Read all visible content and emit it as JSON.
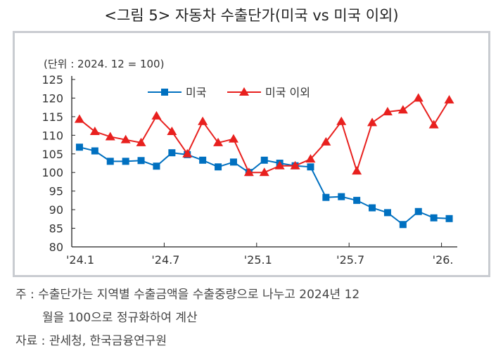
{
  "title": "<그림 5> 자동차 수출단가(미국 vs 미국 이외)",
  "notes": {
    "note1": "주 : 수출단가는 지역별 수출금액을 수출중량으로 나누고 2024년 12",
    "note2": "월을 100으로 정규화하여 계산",
    "source": "자료 : 관세청, 한국금융연구원"
  },
  "chart_data": {
    "type": "line",
    "unit_label": "(단위 : 2024. 12 = 100)",
    "ylim": [
      80,
      125
    ],
    "yticks": [
      80,
      85,
      90,
      95,
      100,
      105,
      110,
      115,
      120,
      125
    ],
    "xtick_labels": [
      {
        "index": 0,
        "label": "'24.1"
      },
      {
        "index": 6,
        "label": "'24.7"
      },
      {
        "index": 12,
        "label": "'25.1"
      },
      {
        "index": 18,
        "label": "'25.7"
      },
      {
        "index": 24,
        "label": "'26."
      }
    ],
    "legend_position": "top-center",
    "series": [
      {
        "name": "미국",
        "color": "#0070c0",
        "marker": "square",
        "values": [
          106.8,
          105.8,
          103.0,
          103.0,
          103.2,
          101.7,
          105.3,
          104.8,
          103.3,
          101.5,
          102.8,
          100.0,
          103.3,
          102.5,
          101.8,
          101.5,
          93.3,
          93.5,
          92.5,
          90.5,
          89.2,
          86.0,
          89.5,
          87.8,
          87.6
        ]
      },
      {
        "name": "미국 이외",
        "color": "#e8201e",
        "marker": "triangle",
        "values": [
          114.3,
          111.0,
          109.6,
          108.8,
          108.0,
          115.2,
          111.0,
          105.0,
          113.7,
          108.0,
          109.0,
          100.0,
          100.0,
          101.8,
          101.8,
          103.6,
          108.2,
          113.7,
          100.4,
          113.4,
          116.3,
          116.8,
          120.0,
          112.8,
          119.5
        ]
      }
    ]
  }
}
